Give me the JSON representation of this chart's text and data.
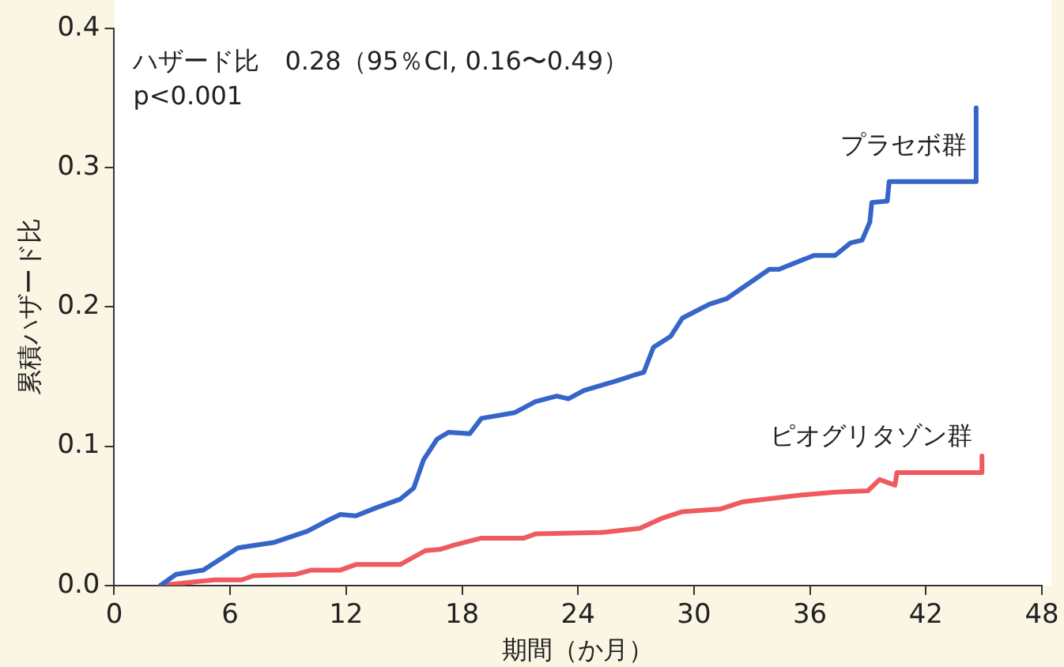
{
  "chart_data": {
    "type": "line",
    "xlabel": "期間（か月）",
    "ylabel": "累積ハザード比",
    "xlim": [
      0,
      48
    ],
    "xticks": [
      0,
      6,
      12,
      18,
      24,
      30,
      36,
      42,
      48
    ],
    "ylim": [
      0,
      0.4
    ],
    "yticks": [
      {
        "value": 0,
        "label": "0.0"
      },
      0.1,
      0.2,
      0.3,
      0.4
    ],
    "grid": false,
    "legend": false,
    "marker": "none",
    "line_style": "solid",
    "annotations": [
      "ハザード比　0.28（95％CI, 0.16〜0.49）",
      "p<0.001"
    ],
    "series": [
      {
        "name": "プラセボ群",
        "color": "#3565c8",
        "x": [
          2.4,
          3.2,
          4.6,
          6.4,
          8.3,
          10.0,
          11.1,
          11.7,
          12.5,
          13.6,
          14.8,
          15.5,
          16.0,
          16.7,
          17.3,
          18.4,
          19.0,
          20.7,
          21.8,
          22.9,
          23.5,
          24.3,
          26.0,
          26.9,
          27.4,
          27.9,
          28.8,
          29.4,
          30.8,
          31.7,
          33.9,
          34.4,
          36.2,
          37.3,
          38.1,
          38.7,
          39.1,
          39.2,
          40.0,
          40.1,
          44.6,
          44.6
        ],
        "values": [
          0,
          0.008,
          0.011,
          0.027,
          0.031,
          0.039,
          0.047,
          0.051,
          0.05,
          0.056,
          0.062,
          0.07,
          0.09,
          0.105,
          0.11,
          0.109,
          0.12,
          0.124,
          0.132,
          0.136,
          0.134,
          0.14,
          0.147,
          0.151,
          0.153,
          0.171,
          0.179,
          0.192,
          0.202,
          0.206,
          0.227,
          0.227,
          0.237,
          0.237,
          0.246,
          0.248,
          0.261,
          0.275,
          0.276,
          0.29,
          0.29,
          0.343
        ]
      },
      {
        "name": "ピオグリタゾン群",
        "color": "#ef5a5f",
        "x": [
          2.4,
          5.2,
          6.6,
          7.2,
          9.4,
          10.2,
          11.7,
          12.5,
          14.8,
          16.1,
          16.9,
          17.6,
          19.0,
          21.2,
          21.8,
          25.2,
          27.2,
          28.3,
          29.4,
          31.4,
          32.5,
          35.6,
          37.3,
          39.0,
          39.6,
          40.4,
          40.5,
          44.9,
          44.9
        ],
        "values": [
          0,
          0.004,
          0.004,
          0.007,
          0.008,
          0.011,
          0.011,
          0.015,
          0.015,
          0.025,
          0.026,
          0.029,
          0.034,
          0.034,
          0.037,
          0.038,
          0.041,
          0.048,
          0.053,
          0.055,
          0.06,
          0.065,
          0.067,
          0.068,
          0.076,
          0.072,
          0.081,
          0.081,
          0.093
        ]
      }
    ]
  }
}
